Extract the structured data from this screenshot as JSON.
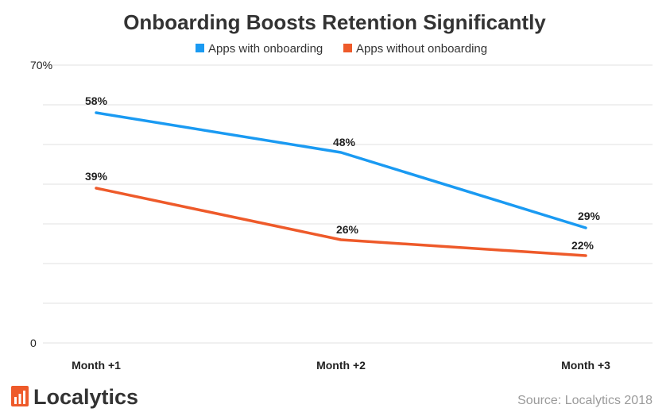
{
  "chart_data": {
    "type": "line",
    "title": "Onboarding Boosts Retention Significantly",
    "categories": [
      "Month +1",
      "Month +2",
      "Month +3"
    ],
    "series": [
      {
        "name": "Apps with onboarding",
        "color": "#1a9af2",
        "values": [
          58,
          48,
          29
        ],
        "labels": [
          "58%",
          "48%",
          "29%"
        ]
      },
      {
        "name": "Apps without onboarding",
        "color": "#ee5a2a",
        "values": [
          39,
          26,
          22
        ],
        "labels": [
          "39%",
          "26%",
          "22%"
        ]
      }
    ],
    "ylim": [
      0,
      70
    ],
    "y_ticks": [
      0,
      10,
      20,
      30,
      40,
      50,
      60,
      70
    ],
    "y_tick_labels": {
      "0": "0",
      "70": "70%"
    },
    "grid": true,
    "legend_position": "top-center"
  },
  "branding": {
    "logo_text": "Localytics",
    "logo_icon": "bar-chart-logo-icon",
    "logo_color": "#ee5a2a"
  },
  "source": "Source: Localytics 2018"
}
